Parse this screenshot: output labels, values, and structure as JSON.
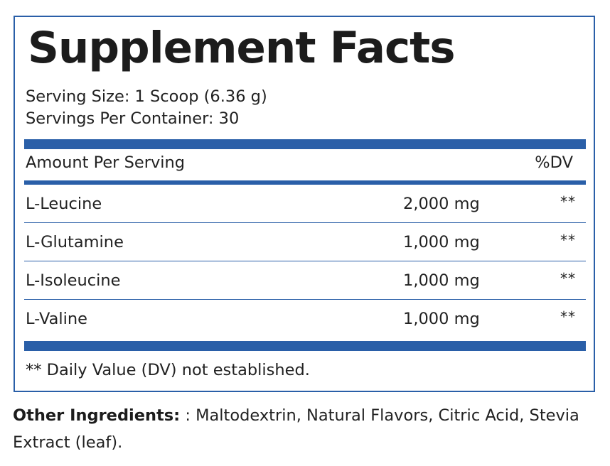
{
  "panel": {
    "title": "Supplement Facts",
    "serving_size": "Serving Size: 1 Scoop (6.36 g)",
    "servings_per_container": "Servings Per Container: 30",
    "header": {
      "amount_label": "Amount Per Serving",
      "dv_label": "%DV"
    },
    "rows": [
      {
        "name": "L-Leucine",
        "amount": "2,000 mg",
        "dv": "**"
      },
      {
        "name": "L-Glutamine",
        "amount": "1,000 mg",
        "dv": "**"
      },
      {
        "name": "L-Isoleucine",
        "amount": "1,000 mg",
        "dv": "**"
      },
      {
        "name": "L-Valine",
        "amount": "1,000 mg",
        "dv": "**"
      }
    ],
    "footnote": "** Daily Value (DV) not established."
  },
  "ingredients": {
    "label": "Other Ingredients:",
    "text": " : Maltodextrin, Natural Flavors, Citric Acid, Stevia Extract (leaf)."
  },
  "colors": {
    "accent": "#2a5fa8",
    "text": "#222222"
  }
}
